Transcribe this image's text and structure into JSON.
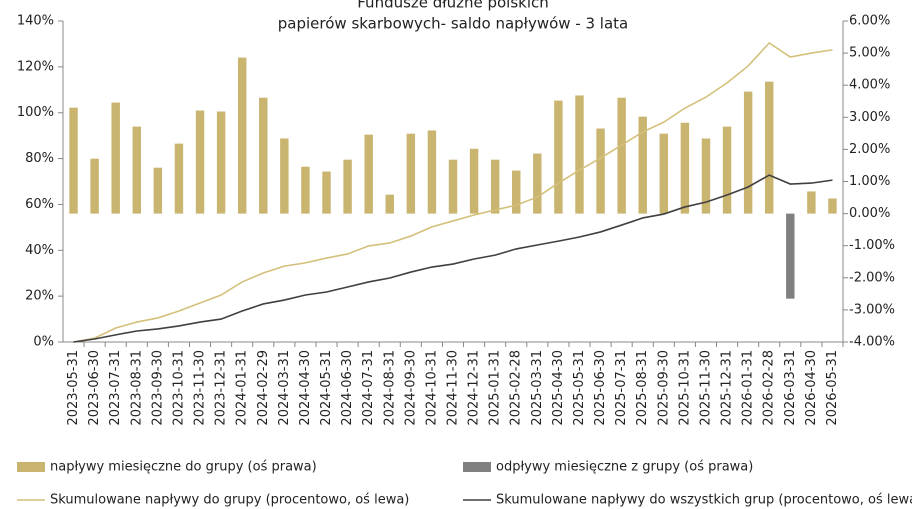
{
  "chart_data": {
    "type": "bar",
    "title": [
      "Fundusze dłużne polskich",
      "papierów skarbowych- saldo napływów - 3 lata"
    ],
    "categories": [
      "2023-05-31",
      "2023-06-30",
      "2023-07-31",
      "2023-08-31",
      "2023-09-30",
      "2023-10-31",
      "2023-11-30",
      "2023-12-31",
      "2024-01-31",
      "2024-02-29",
      "2024-03-31",
      "2024-04-30",
      "2024-05-31",
      "2024-06-30",
      "2024-07-31",
      "2024-08-31",
      "2024-09-30",
      "2024-10-31",
      "2024-11-30",
      "2024-12-31",
      "2025-01-31",
      "2025-02-28",
      "2025-03-31",
      "2025-04-30",
      "2025-05-31",
      "2025-06-30",
      "2025-07-31",
      "2025-08-31",
      "2025-09-30",
      "2025-10-31",
      "2025-11-30",
      "2025-12-31",
      "2026-01-31",
      "2026-02-28",
      "2026-03-31",
      "2026-04-30",
      "2026-05-31"
    ],
    "series": [
      {
        "name": "napływy miesięczne do grupy (oś prawa)",
        "type": "bar",
        "axis": "y2",
        "color": "#c9b56f",
        "values": [
          3.3,
          1.71,
          3.46,
          2.71,
          1.43,
          2.18,
          3.21,
          3.18,
          4.86,
          3.61,
          2.34,
          1.46,
          1.31,
          1.68,
          2.46,
          0.59,
          2.49,
          2.59,
          1.68,
          2.02,
          1.68,
          1.34,
          1.87,
          3.52,
          3.68,
          2.65,
          3.61,
          3.02,
          2.49,
          2.83,
          2.34,
          2.71,
          3.8,
          4.11,
          null,
          0.69,
          0.47
        ]
      },
      {
        "name": "odpływy miesięczne z grupy (oś prawa)",
        "type": "bar",
        "axis": "y2",
        "color": "#808080",
        "values": [
          null,
          null,
          null,
          null,
          null,
          null,
          null,
          null,
          null,
          null,
          null,
          null,
          null,
          null,
          null,
          null,
          null,
          null,
          null,
          null,
          null,
          null,
          null,
          null,
          null,
          null,
          null,
          null,
          null,
          null,
          null,
          null,
          null,
          null,
          -2.65,
          null,
          null
        ]
      },
      {
        "name": "Skumulowane napływy do grupy (procentowo, oś lewa)",
        "type": "line",
        "color": "#d4c07a",
        "values": [
          0,
          1.7,
          6.1,
          8.7,
          10.5,
          13.5,
          17,
          20.5,
          26.2,
          30.1,
          33.1,
          34.5,
          36.6,
          38.4,
          41.9,
          43.2,
          46.2,
          50.2,
          52.8,
          55.4,
          57.6,
          59.7,
          63.2,
          69.3,
          75,
          80.2,
          85.9,
          91.6,
          95.9,
          102,
          106.8,
          113,
          120.4,
          130.4,
          124.3,
          126,
          127.4
        ]
      },
      {
        "name": "Skumulowane napływy do wszystkich grup (procentowo, oś lewa)",
        "type": "line",
        "color": "#404040",
        "values": [
          0,
          1.3,
          3.1,
          4.8,
          5.7,
          7,
          8.7,
          10,
          13.5,
          16.6,
          18.3,
          20.5,
          21.8,
          24,
          26.2,
          27.9,
          30.5,
          32.7,
          34,
          36.2,
          37.9,
          40.6,
          42.3,
          44,
          45.8,
          48,
          51,
          54.1,
          55.8,
          58.9,
          61,
          64.1,
          67.6,
          72.8,
          68.9,
          69.3,
          70.6
        ]
      }
    ],
    "ylim": [
      0,
      140
    ],
    "yticks": [
      {
        "value": 0,
        "label": "0%"
      },
      {
        "value": 20,
        "label": "20%"
      },
      {
        "value": 40,
        "label": "40%"
      },
      {
        "value": 60,
        "label": "60%"
      },
      {
        "value": 80,
        "label": "80%"
      },
      {
        "value": 100,
        "label": "100%"
      },
      {
        "value": 120,
        "label": "120%"
      },
      {
        "value": 140,
        "label": "140%"
      }
    ],
    "y2lim": [
      -4,
      6
    ],
    "y2ticks": [
      {
        "value": -4,
        "label": "-4.00%"
      },
      {
        "value": -3,
        "label": "-3.00%"
      },
      {
        "value": -2,
        "label": "-2.00%"
      },
      {
        "value": -1,
        "label": "-1.00%"
      },
      {
        "value": 0,
        "label": "0.00%"
      },
      {
        "value": 1,
        "label": "1.00%"
      },
      {
        "value": 2,
        "label": "2.00%"
      },
      {
        "value": 3,
        "label": "3.00%"
      },
      {
        "value": 4,
        "label": "4.00%"
      },
      {
        "value": 5,
        "label": "5.00%"
      },
      {
        "value": 6,
        "label": "6.00%"
      }
    ],
    "legend": "bottom"
  }
}
